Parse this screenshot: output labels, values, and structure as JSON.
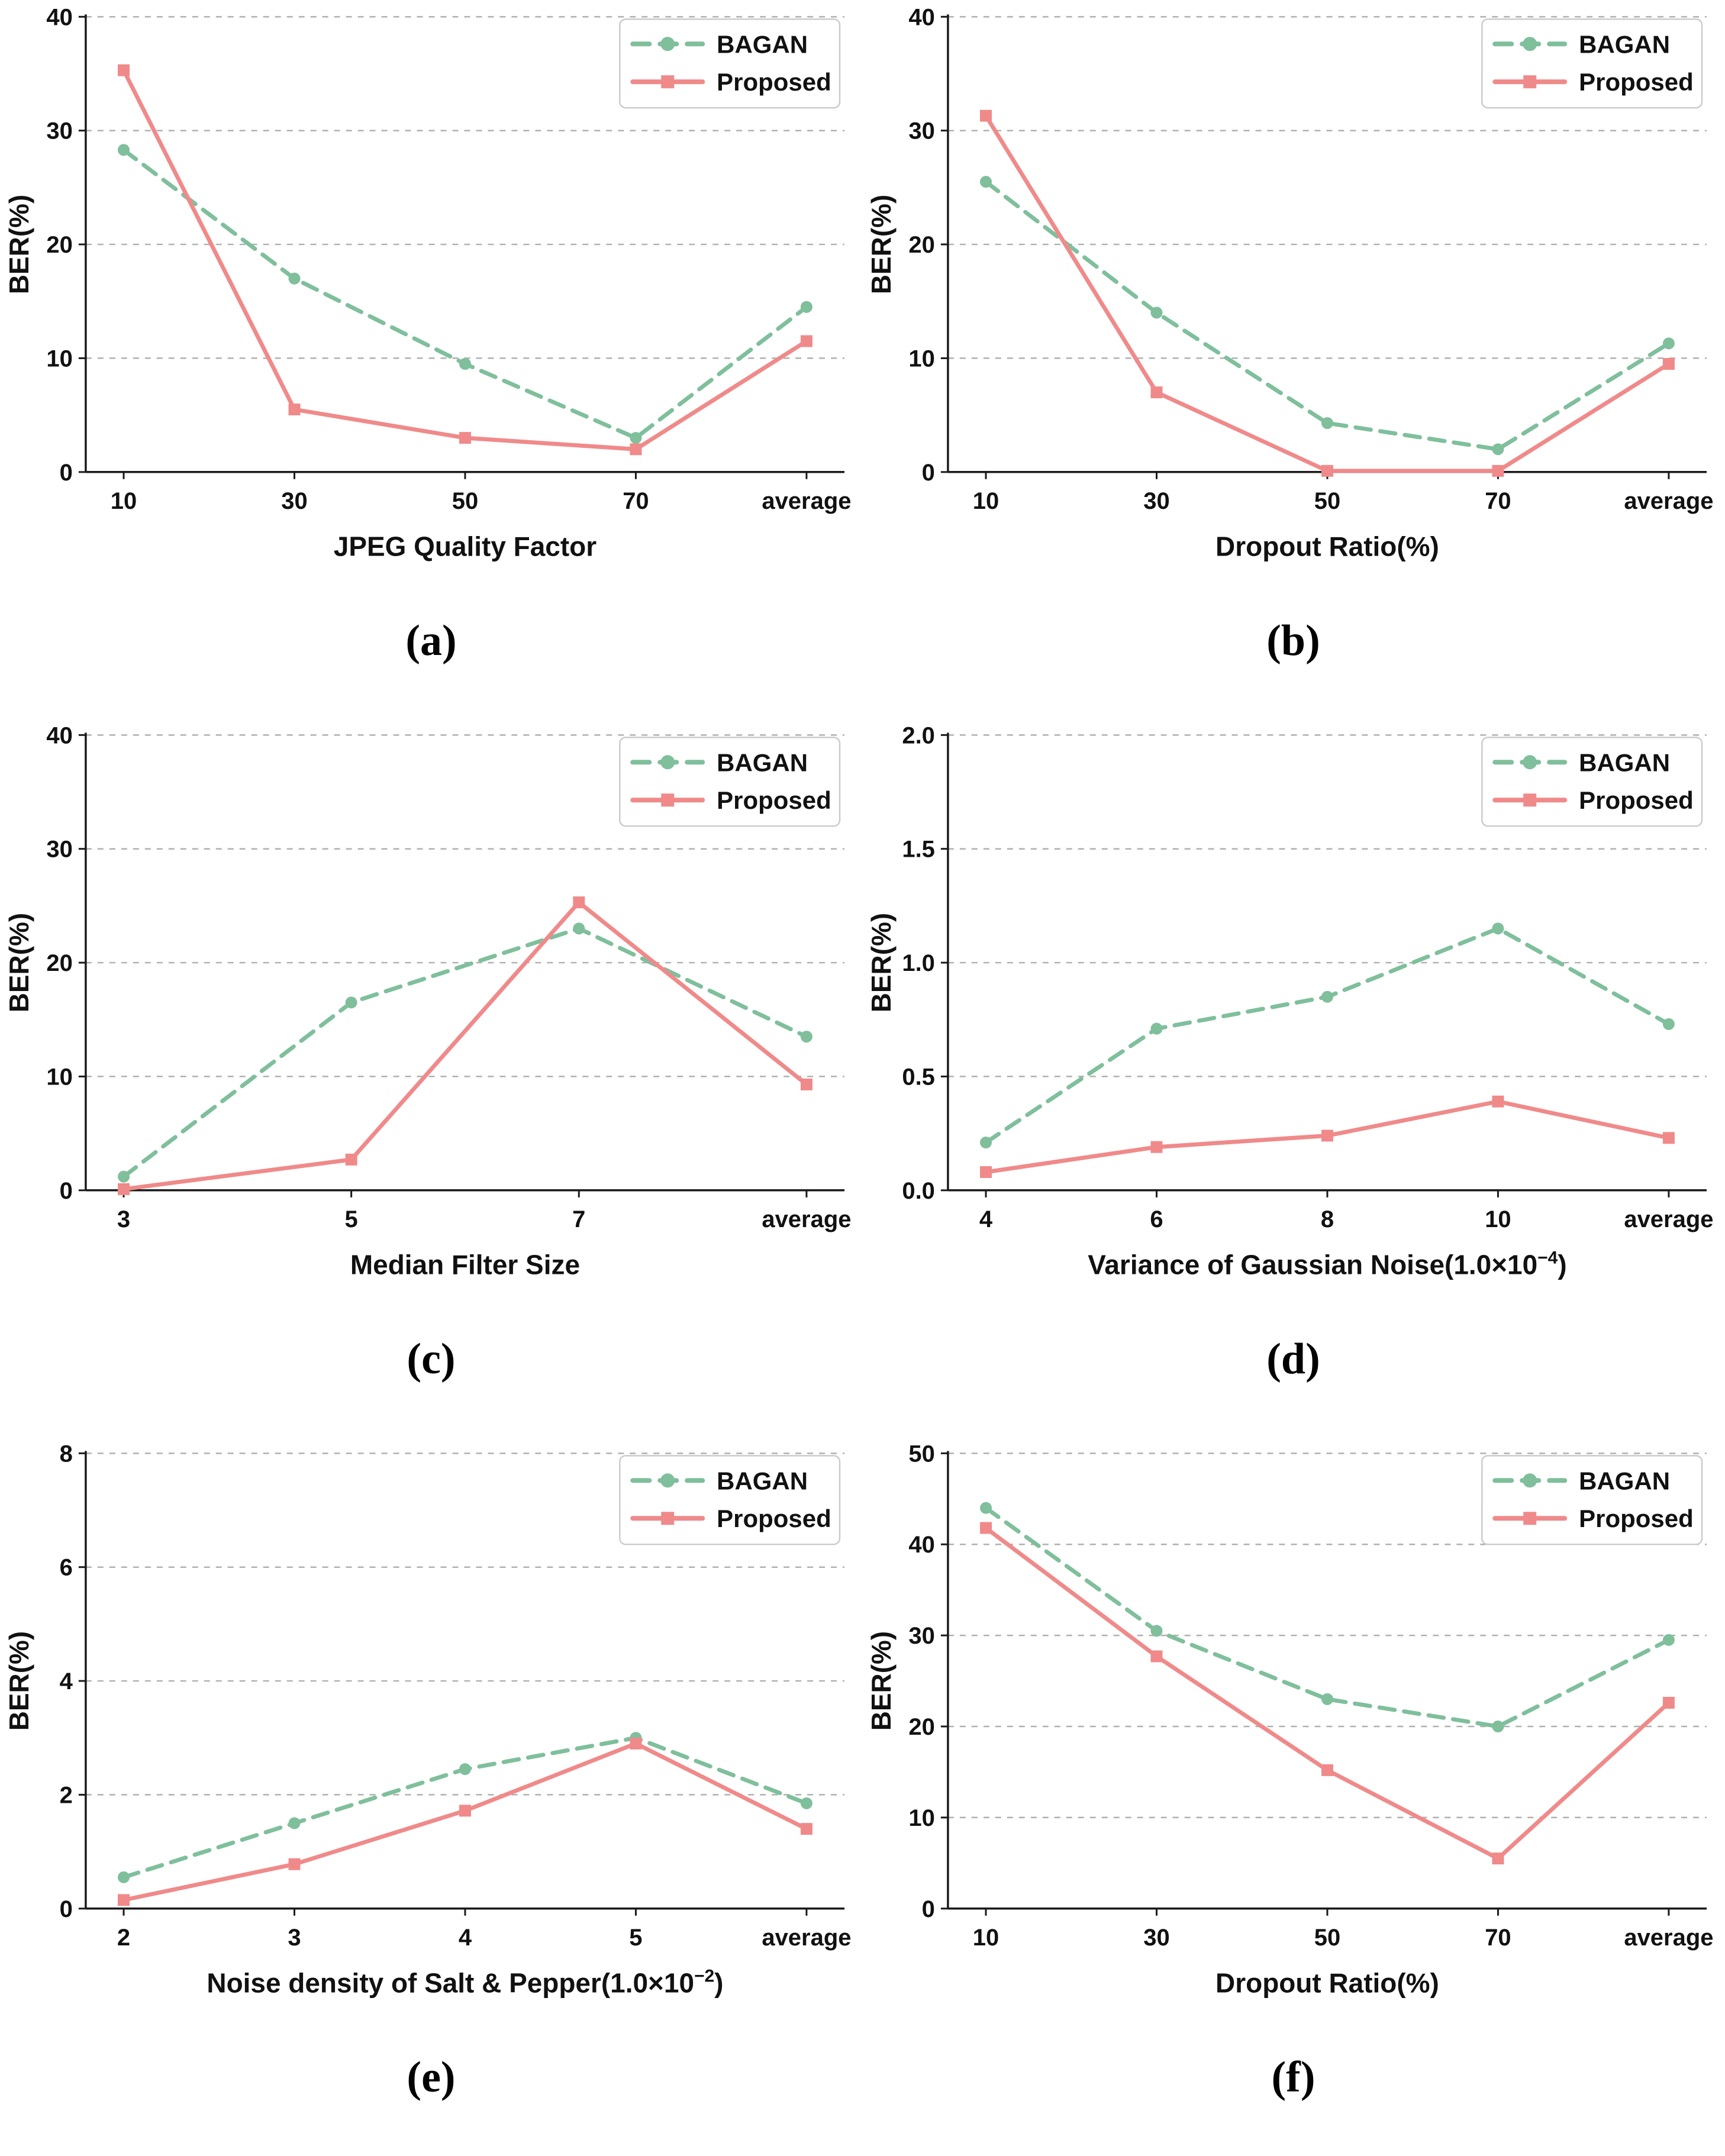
{
  "figure": {
    "theme": {
      "bagan_color": "#7fbf9c",
      "proposed_color": "#f08a8a",
      "grid_color": "#b0b0b0",
      "axis_color": "#1a1a1a",
      "text_color": "#111111",
      "legend_border_color": "#cccccc",
      "background_color": "#ffffff"
    },
    "legend_entries": [
      "BAGAN",
      "Proposed"
    ]
  },
  "chart_data": [
    {
      "id": "a",
      "caption": "(a)",
      "type": "line",
      "xlabel": "JPEG Quality Factor",
      "xlabel_parts": [
        {
          "text": "JPEG Quality Factor"
        }
      ],
      "ylabel": "BER(%)",
      "categories": [
        "10",
        "30",
        "50",
        "70",
        "average"
      ],
      "ylim": [
        0,
        40
      ],
      "yticks": [
        0,
        10,
        20,
        30,
        40
      ],
      "ytick_labels": [
        "0",
        "10",
        "20",
        "30",
        "40"
      ],
      "grid": true,
      "legend_position": "top-right",
      "series": [
        {
          "name": "BAGAN",
          "style": "dashed-circle",
          "values": [
            28.3,
            17.0,
            9.5,
            3.0,
            14.5
          ]
        },
        {
          "name": "Proposed",
          "style": "solid-square",
          "values": [
            35.3,
            5.5,
            3.0,
            2.0,
            11.5
          ]
        }
      ]
    },
    {
      "id": "b",
      "caption": "(b)",
      "type": "line",
      "xlabel": "Dropout Ratio(%)",
      "xlabel_parts": [
        {
          "text": "Dropout Ratio(%)"
        }
      ],
      "ylabel": "BER(%)",
      "categories": [
        "10",
        "30",
        "50",
        "70",
        "average"
      ],
      "ylim": [
        0,
        40
      ],
      "yticks": [
        0,
        10,
        20,
        30,
        40
      ],
      "ytick_labels": [
        "0",
        "10",
        "20",
        "30",
        "40"
      ],
      "grid": true,
      "legend_position": "top-right",
      "series": [
        {
          "name": "BAGAN",
          "style": "dashed-circle",
          "values": [
            25.5,
            14.0,
            4.3,
            2.0,
            11.3
          ]
        },
        {
          "name": "Proposed",
          "style": "solid-square",
          "values": [
            31.3,
            7.0,
            0.1,
            0.1,
            9.5
          ]
        }
      ]
    },
    {
      "id": "c",
      "caption": "(c)",
      "type": "line",
      "xlabel": "Median Filter Size",
      "xlabel_parts": [
        {
          "text": "Median Filter Size"
        }
      ],
      "ylabel": "BER(%)",
      "categories": [
        "3",
        "5",
        "7",
        "average"
      ],
      "ylim": [
        0,
        40
      ],
      "yticks": [
        0,
        10,
        20,
        30,
        40
      ],
      "ytick_labels": [
        "0",
        "10",
        "20",
        "30",
        "40"
      ],
      "grid": true,
      "legend_position": "top-right",
      "series": [
        {
          "name": "BAGAN",
          "style": "dashed-circle",
          "values": [
            1.2,
            16.5,
            23.0,
            13.5
          ]
        },
        {
          "name": "Proposed",
          "style": "solid-square",
          "values": [
            0.1,
            2.7,
            25.3,
            9.3
          ]
        }
      ]
    },
    {
      "id": "d",
      "caption": "(d)",
      "type": "line",
      "xlabel": "Variance of Gaussian Noise(1.0×10⁻⁴)",
      "xlabel_parts": [
        {
          "text": "Variance of Gaussian Noise(1.0×10"
        },
        {
          "text": "−4",
          "sup": true
        },
        {
          "text": ")"
        }
      ],
      "ylabel": "BER(%)",
      "categories": [
        "4",
        "6",
        "8",
        "10",
        "average"
      ],
      "ylim": [
        0,
        2
      ],
      "yticks": [
        0,
        0.5,
        1.0,
        1.5,
        2.0
      ],
      "ytick_labels": [
        "0.0",
        "0.5",
        "1.0",
        "1.5",
        "2.0"
      ],
      "grid": true,
      "legend_position": "top-right",
      "series": [
        {
          "name": "BAGAN",
          "style": "dashed-circle",
          "values": [
            0.21,
            0.71,
            0.85,
            1.15,
            0.73
          ]
        },
        {
          "name": "Proposed",
          "style": "solid-square",
          "values": [
            0.08,
            0.19,
            0.24,
            0.39,
            0.23
          ]
        }
      ]
    },
    {
      "id": "e",
      "caption": "(e)",
      "type": "line",
      "xlabel": "Noise density of Salt & Pepper(1.0×10⁻²)",
      "xlabel_parts": [
        {
          "text": "Noise density of Salt & Pepper(1.0×10"
        },
        {
          "text": "−2",
          "sup": true
        },
        {
          "text": ")"
        }
      ],
      "ylabel": "BER(%)",
      "categories": [
        "2",
        "3",
        "4",
        "5",
        "average"
      ],
      "ylim": [
        0,
        8
      ],
      "yticks": [
        0,
        2,
        4,
        6,
        8
      ],
      "ytick_labels": [
        "0",
        "2",
        "4",
        "6",
        "8"
      ],
      "grid": true,
      "legend_position": "top-right",
      "series": [
        {
          "name": "BAGAN",
          "style": "dashed-circle",
          "values": [
            0.55,
            1.5,
            2.45,
            3.0,
            1.85
          ]
        },
        {
          "name": "Proposed",
          "style": "solid-square",
          "values": [
            0.15,
            0.78,
            1.72,
            2.9,
            1.4
          ]
        }
      ]
    },
    {
      "id": "f",
      "caption": "(f)",
      "type": "line",
      "xlabel": "Dropout Ratio(%)",
      "xlabel_parts": [
        {
          "text": "Dropout Ratio(%)"
        }
      ],
      "ylabel": "BER(%)",
      "categories": [
        "10",
        "30",
        "50",
        "70",
        "average"
      ],
      "ylim": [
        0,
        50
      ],
      "yticks": [
        0,
        10,
        20,
        30,
        40,
        50
      ],
      "ytick_labels": [
        "0",
        "10",
        "20",
        "30",
        "40",
        "50"
      ],
      "grid": true,
      "legend_position": "top-right",
      "series": [
        {
          "name": "BAGAN",
          "style": "dashed-circle",
          "values": [
            44.0,
            30.5,
            23.0,
            20.0,
            29.5
          ]
        },
        {
          "name": "Proposed",
          "style": "solid-square",
          "values": [
            41.8,
            27.7,
            15.2,
            5.5,
            22.6
          ]
        }
      ]
    }
  ]
}
